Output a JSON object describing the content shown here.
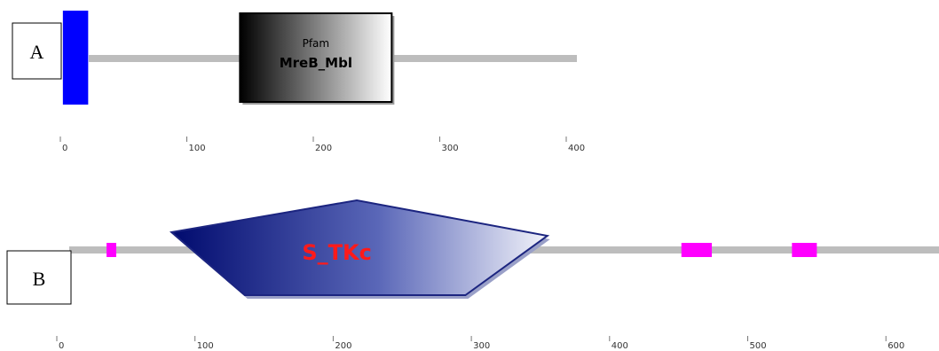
{
  "panels": [
    {
      "id": "A",
      "label": "A",
      "domains": [
        {
          "kind": "signal-block",
          "start": 2,
          "end": 22,
          "color": "#0000ff"
        },
        {
          "kind": "pfam",
          "start": 142,
          "end": 262,
          "line1": "Pfam",
          "line2": "MreB_Mbl"
        }
      ],
      "ticks": [
        "0",
        "100",
        "200",
        "300",
        "400"
      ]
    },
    {
      "id": "B",
      "label": "B",
      "domains": [
        {
          "kind": "small-block",
          "start": 36,
          "end": 43,
          "color": "#ff00ff"
        },
        {
          "kind": "smart-kinase",
          "start": 83,
          "end": 355,
          "label": "S_TKc"
        },
        {
          "kind": "small-block",
          "start": 452,
          "end": 474,
          "color": "#ff00ff"
        },
        {
          "kind": "small-block",
          "start": 532,
          "end": 550,
          "color": "#ff00ff"
        }
      ],
      "ticks": [
        "0",
        "100",
        "200",
        "300",
        "400",
        "500",
        "600"
      ]
    }
  ]
}
